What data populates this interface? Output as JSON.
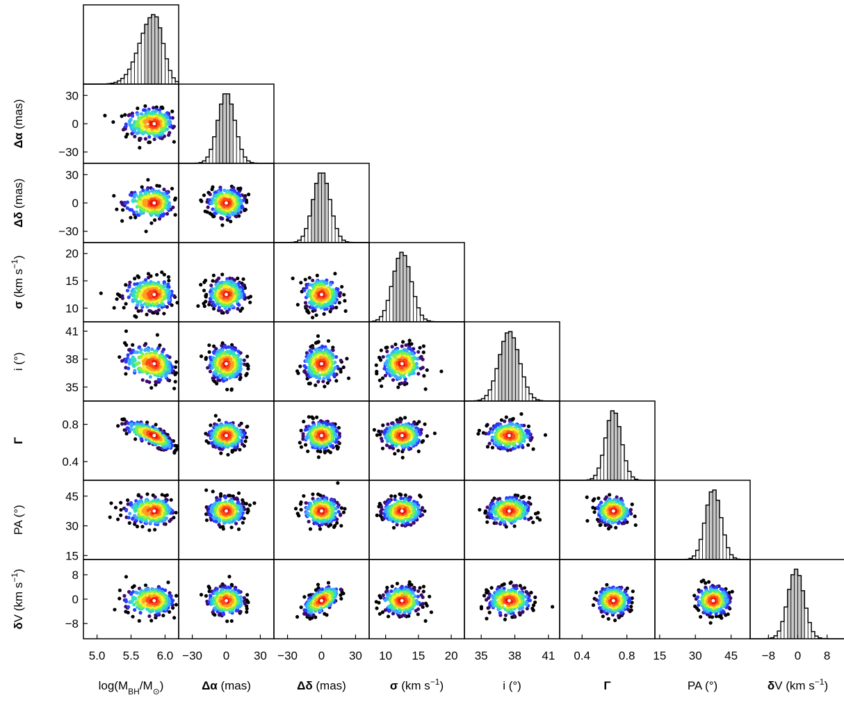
{
  "chart_data": {
    "type": "scatter",
    "title": "",
    "plot_kind": "corner plot (posterior samples)",
    "point_color_scale": "rainbow density (black/purple outer, blue, cyan, green, yellow, orange, red core)",
    "best_fit_marker": "white dot",
    "parameters": [
      {
        "key": "logM",
        "label_parts": [
          [
            "log(M",
            false,
            false
          ],
          [
            "BH",
            false,
            true
          ],
          [
            "/M",
            false,
            false
          ],
          [
            "⊙",
            false,
            true
          ],
          [
            ")",
            false,
            false
          ]
        ],
        "range": [
          4.8,
          6.2
        ],
        "ticks": [
          5.0,
          5.5,
          6.0
        ],
        "tick_labels": [
          "5.0",
          "5.5",
          "6.0"
        ],
        "peak": 5.84
      },
      {
        "key": "dalpha",
        "label_parts": [
          [
            "Δα",
            true,
            false
          ],
          [
            " (mas)",
            false,
            false
          ]
        ],
        "range": [
          -42,
          42
        ],
        "ticks": [
          -30,
          0,
          30
        ],
        "tick_labels": [
          "−30",
          "0",
          "30"
        ],
        "peak": 0
      },
      {
        "key": "ddelta",
        "label_parts": [
          [
            "Δδ",
            true,
            false
          ],
          [
            " (mas)",
            false,
            false
          ]
        ],
        "range": [
          -42,
          42
        ],
        "ticks": [
          -30,
          0,
          30
        ],
        "tick_labels": [
          "−30",
          "0",
          "30"
        ],
        "peak": 0
      },
      {
        "key": "sigma",
        "label_parts": [
          [
            "σ",
            true,
            false
          ],
          [
            " (km s",
            false,
            false
          ],
          [
            "−1",
            false,
            "sup"
          ],
          [
            ")",
            false,
            false
          ]
        ],
        "range": [
          7.5,
          22
        ],
        "ticks": [
          10,
          15,
          20
        ],
        "tick_labels": [
          "10",
          "15",
          "20"
        ],
        "peak": 12.5
      },
      {
        "key": "incl",
        "label_parts": [
          [
            "i (°)",
            false,
            false
          ]
        ],
        "range": [
          33.5,
          42
        ],
        "ticks": [
          35,
          38,
          41
        ],
        "tick_labels": [
          "35",
          "38",
          "41"
        ],
        "peak": 37.5
      },
      {
        "key": "gamma",
        "label_parts": [
          [
            "Γ",
            true,
            false
          ]
        ],
        "range": [
          0.2,
          1.05
        ],
        "ticks": [
          0.4,
          0.8
        ],
        "tick_labels": [
          "0.4",
          "0.8"
        ],
        "peak": 0.68
      },
      {
        "key": "PA",
        "label_parts": [
          [
            "PA (°)",
            false,
            false
          ]
        ],
        "range": [
          13,
          53
        ],
        "ticks": [
          15,
          30,
          45
        ],
        "tick_labels": [
          "15",
          "30",
          "45"
        ],
        "peak": 37.5
      },
      {
        "key": "dV",
        "label_parts": [
          [
            "δ",
            true,
            false
          ],
          [
            "V (km s",
            false,
            false
          ],
          [
            "−1",
            false,
            "sup"
          ],
          [
            ")",
            false,
            false
          ]
        ],
        "range": [
          -13,
          13
        ],
        "ticks": [
          -8,
          0,
          8
        ],
        "tick_labels": [
          "−8",
          "0",
          "8"
        ],
        "peak": -0.5
      }
    ],
    "correlations": [
      {
        "pair": [
          "gamma",
          "logM"
        ],
        "r": -0.75
      },
      {
        "pair": [
          "dV",
          "ddelta"
        ],
        "r": 0.6
      },
      {
        "pair": [
          "incl",
          "logM"
        ],
        "r": -0.2
      }
    ],
    "histogram_peak_heights": [
      0.3,
      0.3,
      0.3,
      0.3,
      0.3,
      0.3,
      0.3,
      0.3
    ]
  }
}
